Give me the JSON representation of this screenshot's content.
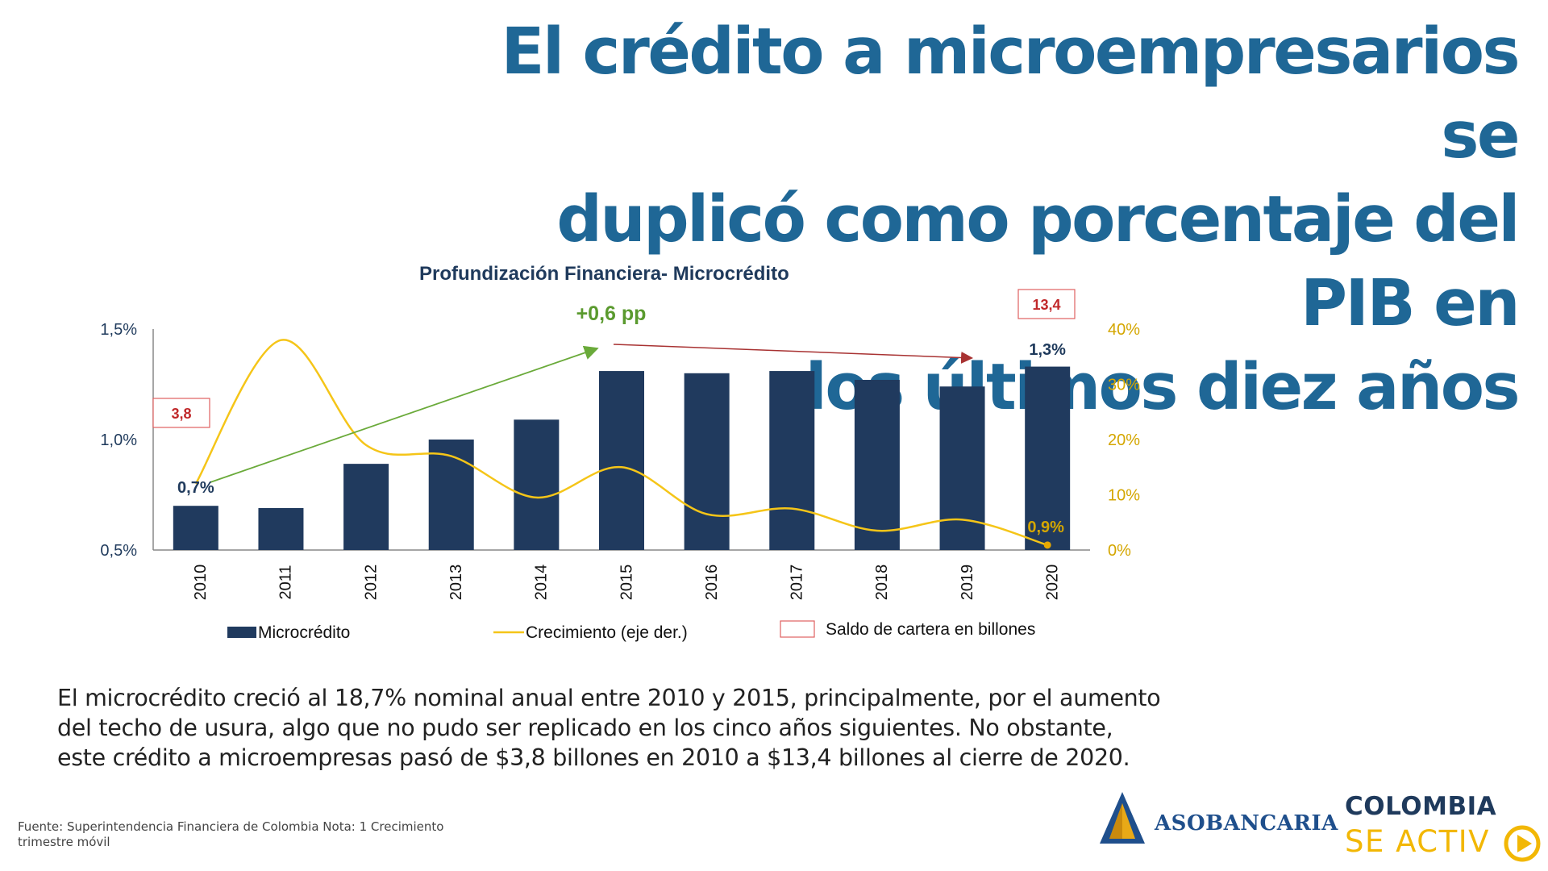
{
  "slide": {
    "title_lines": [
      "El crédito a microempresarios se",
      "duplicó como porcentaje del PIB en",
      "los últimos diez años"
    ],
    "body_lines": [
      "El microcrédito creció al 18,7% nominal anual entre 2010 y 2015, principalmente, por el aumento",
      "del techo de usura, algo que no pudo ser replicado en los cinco años siguientes. No obstante,",
      "este crédito a microempresas pasó de $3,8 billones en 2010 a $13,4 billones al cierre de 2020."
    ],
    "footnote": "Fuente: Superintendencia Financiera de Colombia Nota: 1 Crecimiento trimestre móvil",
    "logo_asobancaria": "ASOBANCARIA",
    "logo_colombia_line1": "COLOMBIA",
    "logo_colombia_line2": "SE ACTIV"
  },
  "colors": {
    "title": "#1f6796",
    "bar": "#203a5e",
    "growth_line": "#f5c518",
    "green_arrow": "#6aaa3a",
    "red_arrow": "#a83232",
    "box_border": "#e06060",
    "box_text": "#c0282a"
  },
  "chart_data": {
    "type": "bar",
    "title": "Profundización Financiera- Microcrédito",
    "categories": [
      "2010",
      "2011",
      "2012",
      "2013",
      "2014",
      "2015",
      "2016",
      "2017",
      "2018",
      "2019",
      "2020"
    ],
    "series": [
      {
        "name": "Microcrédito",
        "axis": "left",
        "type": "bar",
        "values": [
          0.7,
          0.69,
          0.89,
          1.0,
          1.09,
          1.31,
          1.3,
          1.31,
          1.27,
          1.24,
          1.33
        ]
      },
      {
        "name": "Crecimiento (eje der.)",
        "axis": "right",
        "type": "line",
        "values": [
          12,
          38,
          19,
          17,
          9.5,
          15,
          6.5,
          7.5,
          3.5,
          5.5,
          0.9
        ]
      }
    ],
    "y_left": {
      "ticks": [
        "1,5%",
        "1,0%",
        "0,5%"
      ],
      "tick_values": [
        1.5,
        1.0,
        0.5
      ],
      "min": 0.5,
      "max": 1.5
    },
    "y_right": {
      "ticks": [
        "40%",
        "30%",
        "20%",
        "10%",
        "0%"
      ],
      "tick_values": [
        40,
        30,
        20,
        10,
        0
      ],
      "min": 0,
      "max": 40
    },
    "data_labels": {
      "first_bar": "0,7%",
      "last_bar": "1,3%",
      "last_growth": "0,9%"
    },
    "annotations": {
      "growth_change": "+0,6 pp",
      "saldo_2010": "3,8",
      "saldo_2020": "13,4"
    },
    "legend": [
      {
        "label": "Microcrédito",
        "kind": "bar"
      },
      {
        "label": "Crecimiento (eje der.)",
        "kind": "line"
      },
      {
        "label": "Saldo de cartera en billones",
        "kind": "box"
      }
    ],
    "legend_position": "bottom"
  }
}
